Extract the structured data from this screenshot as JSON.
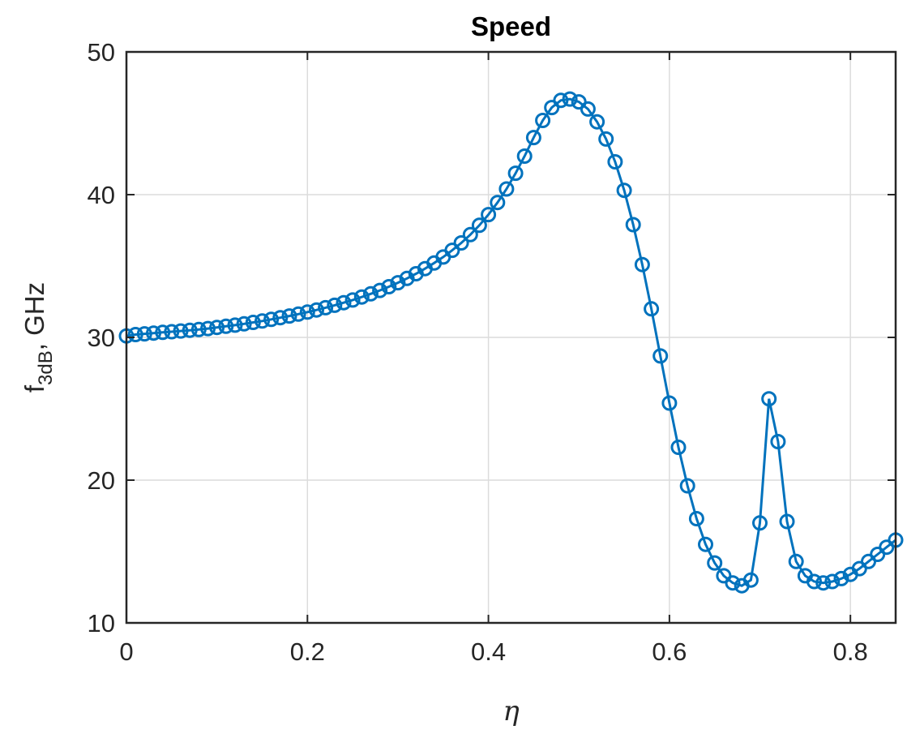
{
  "chart_data": {
    "type": "line",
    "title": "Speed",
    "xlabel": "η",
    "ylabel": {
      "main": "f",
      "sub": "3dB",
      "suffix": ", GHz"
    },
    "xlim": [
      0,
      0.85
    ],
    "ylim": [
      10,
      50
    ],
    "xticks": [
      0,
      0.2,
      0.4,
      0.6,
      0.8
    ],
    "xtick_labels": [
      "0",
      "0.2",
      "0.4",
      "0.6",
      "0.8"
    ],
    "yticks": [
      10,
      20,
      30,
      40,
      50
    ],
    "ytick_labels": [
      "10",
      "20",
      "30",
      "40",
      "50"
    ],
    "grid": true,
    "marker": "circle",
    "colors": {
      "series": "#0072BD",
      "axis": "#262626",
      "grid": "#dcdcdc"
    },
    "series": [
      {
        "x": [
          0,
          0.01,
          0.02,
          0.03,
          0.04,
          0.05,
          0.06,
          0.07,
          0.08,
          0.09,
          0.1,
          0.11,
          0.12,
          0.13,
          0.14,
          0.15,
          0.16,
          0.17,
          0.18,
          0.19,
          0.2,
          0.21,
          0.22,
          0.23,
          0.24,
          0.25,
          0.26,
          0.27,
          0.28,
          0.29,
          0.3,
          0.31,
          0.32,
          0.33,
          0.34,
          0.35,
          0.36,
          0.37,
          0.38,
          0.39,
          0.4,
          0.41,
          0.42,
          0.43,
          0.44,
          0.45,
          0.46,
          0.47,
          0.48,
          0.49,
          0.5,
          0.51,
          0.52,
          0.53,
          0.54,
          0.55,
          0.56,
          0.57,
          0.58,
          0.59,
          0.6,
          0.61,
          0.62,
          0.63,
          0.64,
          0.65,
          0.66,
          0.67,
          0.68,
          0.69,
          0.7,
          0.71,
          0.72,
          0.73,
          0.74,
          0.75,
          0.76,
          0.77,
          0.78,
          0.79,
          0.8,
          0.81,
          0.82,
          0.83,
          0.84,
          0.85
        ],
        "y": [
          30.1,
          30.2,
          30.25,
          30.3,
          30.35,
          30.4,
          30.45,
          30.5,
          30.55,
          30.62,
          30.7,
          30.78,
          30.86,
          30.95,
          31.05,
          31.15,
          31.26,
          31.38,
          31.5,
          31.63,
          31.77,
          31.92,
          32.08,
          32.25,
          32.43,
          32.62,
          32.83,
          33.05,
          33.29,
          33.55,
          33.83,
          34.13,
          34.46,
          34.82,
          35.21,
          35.63,
          36.1,
          36.62,
          37.2,
          37.85,
          38.6,
          39.45,
          40.4,
          41.5,
          42.7,
          44.0,
          45.2,
          46.1,
          46.6,
          46.7,
          46.5,
          46.0,
          45.1,
          43.9,
          42.3,
          40.3,
          37.9,
          35.1,
          32.0,
          28.7,
          25.4,
          22.3,
          19.6,
          17.3,
          15.5,
          14.2,
          13.3,
          12.8,
          12.6,
          13.0,
          17.0,
          25.7,
          22.7,
          17.1,
          14.3,
          13.3,
          12.9,
          12.8,
          12.9,
          13.1,
          13.4,
          13.8,
          14.3,
          14.8,
          15.3,
          15.8
        ]
      }
    ]
  }
}
